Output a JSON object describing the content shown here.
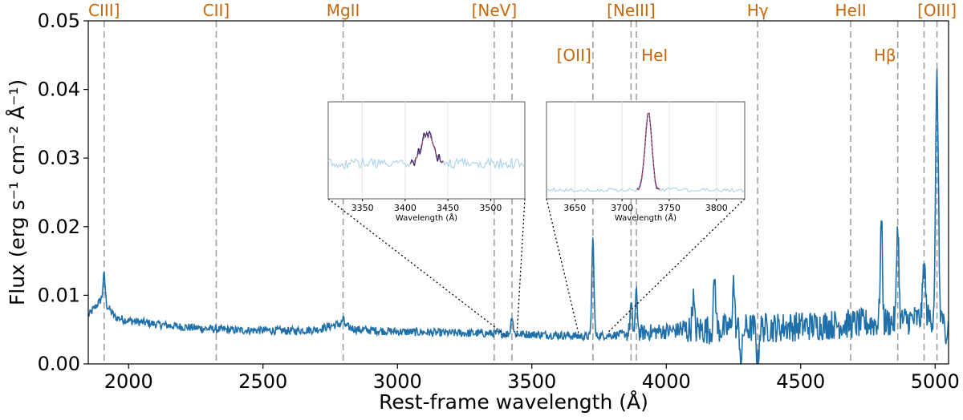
{
  "chart_data": {
    "type": "line",
    "title": "",
    "xlabel": "Rest-frame wavelength (Å)",
    "ylabel": "Flux (erg s⁻¹ cm⁻² Å⁻¹)",
    "xlim": [
      1850,
      5050
    ],
    "ylim": [
      0,
      0.05
    ],
    "xticks": [
      "2000",
      "2500",
      "3000",
      "3500",
      "4000",
      "4500",
      "5000"
    ],
    "yticks": [
      "0.00",
      "0.01",
      "0.02",
      "0.03",
      "0.04",
      "0.05"
    ],
    "spectrum": {
      "color": "#1f6fa8",
      "continuum": [
        [
          1850,
          0.007
        ],
        [
          1880,
          0.0085
        ],
        [
          1900,
          0.0095
        ],
        [
          1950,
          0.0068
        ],
        [
          2000,
          0.0063
        ],
        [
          2100,
          0.0058
        ],
        [
          2200,
          0.0054
        ],
        [
          2300,
          0.0051
        ],
        [
          2400,
          0.0049
        ],
        [
          2500,
          0.0049
        ],
        [
          2600,
          0.0048
        ],
        [
          2700,
          0.005
        ],
        [
          2780,
          0.0058
        ],
        [
          2850,
          0.005
        ],
        [
          3000,
          0.0047
        ],
        [
          3200,
          0.0045
        ],
        [
          3400,
          0.0044
        ],
        [
          3600,
          0.0042
        ],
        [
          3700,
          0.004
        ],
        [
          3800,
          0.0042
        ],
        [
          3900,
          0.0045
        ],
        [
          4000,
          0.0048
        ],
        [
          4200,
          0.0051
        ],
        [
          4400,
          0.0053
        ],
        [
          4600,
          0.0057
        ],
        [
          4800,
          0.006
        ],
        [
          4950,
          0.0066
        ],
        [
          5050,
          0.007
        ]
      ],
      "peaks": [
        [
          1909,
          0.013
        ],
        [
          2798,
          0.0065
        ],
        [
          3426,
          0.007
        ],
        [
          3727,
          0.0182
        ],
        [
          3869,
          0.0085
        ],
        [
          3889,
          0.0103
        ],
        [
          4100,
          0.0095
        ],
        [
          4180,
          0.0125
        ],
        [
          4250,
          0.012
        ],
        [
          4279,
          0.0
        ],
        [
          4340,
          0.0
        ],
        [
          4800,
          0.021
        ],
        [
          4861,
          0.021
        ],
        [
          4959,
          0.0145
        ],
        [
          5007,
          0.0418
        ],
        [
          5040,
          0.002
        ]
      ]
    },
    "emission_lines": [
      {
        "name": "CIII]",
        "x": 1909,
        "row": "top"
      },
      {
        "name": "CII]",
        "x": 2326,
        "row": "top"
      },
      {
        "name": "MgII",
        "x": 2798,
        "row": "top"
      },
      {
        "name": "[NeV]",
        "x": 3360,
        "row": "top"
      },
      {
        "name": "",
        "x": 3426,
        "row": "none"
      },
      {
        "name": "[OII]",
        "x": 3727,
        "row": "second"
      },
      {
        "name": "[NeIII]",
        "x": 3869,
        "row": "top"
      },
      {
        "name": "HeI",
        "x": 3889,
        "row": "second"
      },
      {
        "name": "Hγ",
        "x": 4340,
        "row": "top"
      },
      {
        "name": "HeII",
        "x": 4686,
        "row": "top"
      },
      {
        "name": "Hβ",
        "x": 4861,
        "row": "second"
      },
      {
        "name": "",
        "x": 4959,
        "row": "none"
      },
      {
        "name": "[OIII]",
        "x": 5007,
        "row": "top"
      }
    ],
    "insets": [
      {
        "xlabel": "Wavelength (Å)",
        "xlim": [
          3310,
          3540
        ],
        "xticks": [
          "3350",
          "3400",
          "3450",
          "3500"
        ],
        "xtick_values": [
          3350,
          3400,
          3450,
          3500
        ],
        "fit_range": [
          3405,
          3445
        ],
        "peak_center": 3426,
        "zoom_source": [
          3426,
          3426
        ]
      },
      {
        "xlabel": "Wavelength (Å)",
        "xlim": [
          3620,
          3830
        ],
        "xticks": [
          "3650",
          "3700",
          "3750",
          "3800"
        ],
        "xtick_values": [
          3650,
          3700,
          3750,
          3800
        ],
        "fit_range": [
          3715,
          3740
        ],
        "peak_center": 3728,
        "zoom_source": [
          3727,
          3727
        ]
      }
    ],
    "colors": {
      "line_label": "#c8680a",
      "marker_line": "#a0a0a0",
      "inset_spectrum": "#a9d3e8",
      "inset_fit_data": "#2a2a6a",
      "inset_model": "#d9507a"
    }
  }
}
